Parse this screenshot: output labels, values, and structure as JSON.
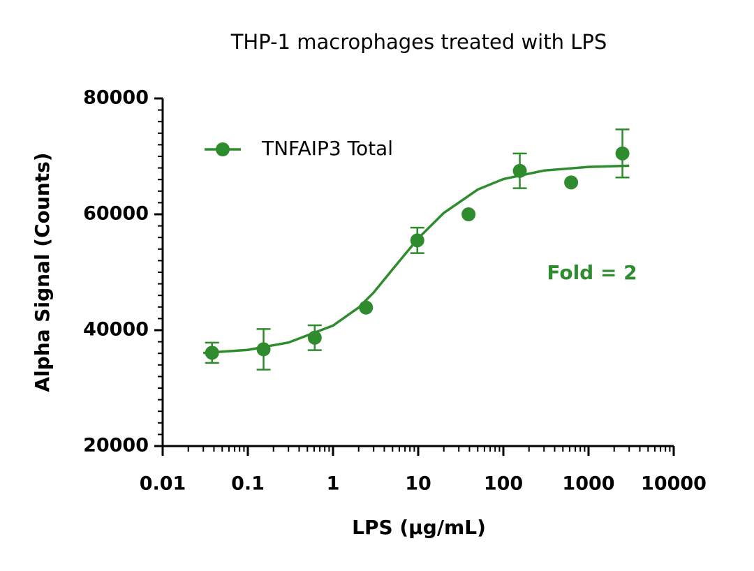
{
  "chart_data": {
    "type": "scatter",
    "title": "THP-1 macrophages treated with LPS",
    "x_label": "LPS (µg/mL)",
    "y_label": "Alpha Signal (Counts)",
    "annotation": "Fold = 2",
    "log_x": true,
    "legend": "upper left",
    "xlim": [
      0.01,
      10000
    ],
    "xticks": [
      0.01,
      0.1,
      1,
      10,
      100,
      1000,
      10000
    ],
    "ylim": [
      20000,
      80000
    ],
    "yticks": [
      20000,
      40000,
      60000,
      80000
    ],
    "series": [
      {
        "name": "TNFAIP3 Total",
        "color": "#2e8b2e",
        "x": [
          0.038,
          0.153,
          0.61,
          2.44,
          9.77,
          39,
          156,
          625,
          2500
        ],
        "values": [
          36100,
          36700,
          38700,
          43900,
          55500,
          60000,
          67500,
          65500,
          70500
        ],
        "errors": [
          1750,
          3500,
          2150,
          null,
          2200,
          null,
          3000,
          null,
          4150
        ]
      }
    ],
    "curve": {
      "x": [
        0.03,
        0.1,
        0.3,
        1,
        2,
        3,
        5,
        10,
        20,
        50,
        100,
        300,
        1000,
        3000
      ],
      "values": [
        36075,
        36600,
        37870,
        40800,
        43900,
        46500,
        50500,
        55850,
        60240,
        64280,
        66090,
        67560,
        68180,
        68380
      ]
    }
  }
}
